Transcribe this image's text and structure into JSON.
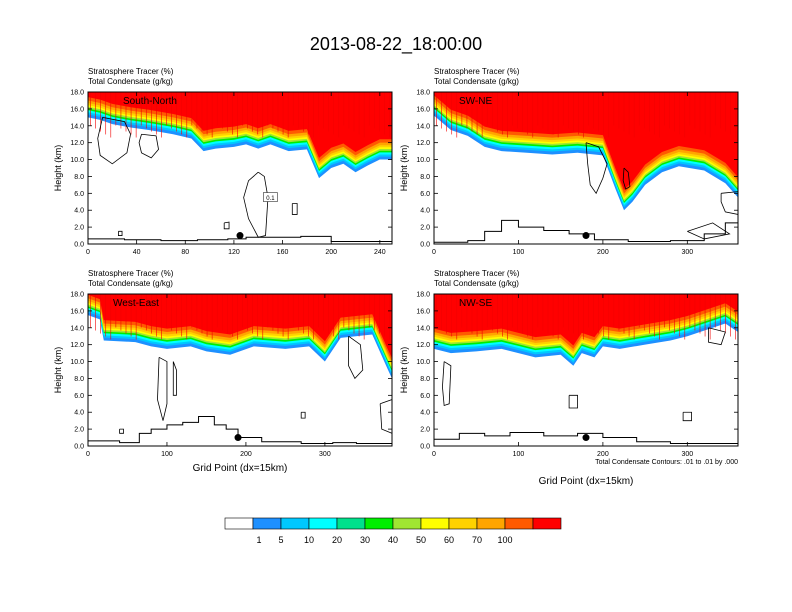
{
  "main_title": "2013-08-22_18:00:00",
  "colors": {
    "bands": [
      "#ffffff",
      "#1e90ff",
      "#00c8ff",
      "#00ffff",
      "#00e08c",
      "#00ee00",
      "#a0e632",
      "#ffff00",
      "#ffd200",
      "#ffa500",
      "#ff5a00",
      "#ff0000"
    ],
    "contour": "#000000",
    "terrain": "#000000"
  },
  "footnote": "Total Condensate Contours: .01 to .01 by .000",
  "chart_data": [
    {
      "type": "heatmap",
      "panel": "top-left",
      "label": "South-North",
      "title_line1": "Stratosphere Tracer   (%)",
      "title_line2": "Total Condensate   (g/kg)",
      "ylabel": "Height (km)",
      "xlabel": "",
      "xlim": [
        0,
        250
      ],
      "ylim": [
        0,
        18
      ],
      "xticks": [
        0,
        40,
        80,
        120,
        160,
        200,
        240
      ],
      "yticks": [
        "0.0",
        "2.0",
        "4.0",
        "6.0",
        "8.0",
        "10.0",
        "12.0",
        "14.0",
        "16.0",
        "18.0"
      ],
      "tropopause": [
        [
          0,
          15.0
        ],
        [
          10,
          14.7
        ],
        [
          20,
          14.2
        ],
        [
          35,
          13.8
        ],
        [
          50,
          13.5
        ],
        [
          70,
          13.0
        ],
        [
          85,
          12.5
        ],
        [
          95,
          11.0
        ],
        [
          105,
          11.3
        ],
        [
          120,
          11.5
        ],
        [
          130,
          11.8
        ],
        [
          140,
          11.3
        ],
        [
          150,
          11.8
        ],
        [
          165,
          11.0
        ],
        [
          180,
          11.2
        ],
        [
          190,
          7.8
        ],
        [
          200,
          9.0
        ],
        [
          210,
          9.5
        ],
        [
          220,
          8.5
        ],
        [
          230,
          9.3
        ],
        [
          240,
          10.0
        ],
        [
          250,
          10.0
        ]
      ],
      "terrain": [
        [
          0,
          0.6
        ],
        [
          30,
          0.5
        ],
        [
          60,
          0.4
        ],
        [
          90,
          0.5
        ],
        [
          115,
          0.6
        ],
        [
          130,
          0.8
        ],
        [
          150,
          0.8
        ],
        [
          175,
          0.9
        ],
        [
          200,
          0.3
        ],
        [
          250,
          0.2
        ]
      ],
      "point_marker": [
        125,
        1.0
      ],
      "contour_label": "0.1",
      "contours": [
        [
          [
            12,
            15.0
          ],
          [
            30,
            14.5
          ],
          [
            35,
            13.0
          ],
          [
            32,
            10.8
          ],
          [
            20,
            9.5
          ],
          [
            10,
            10.5
          ],
          [
            8,
            12.5
          ],
          [
            12,
            15.0
          ]
        ],
        [
          [
            44,
            13.0
          ],
          [
            56,
            12.8
          ],
          [
            58,
            11.2
          ],
          [
            52,
            10.2
          ],
          [
            44,
            10.8
          ],
          [
            42,
            12.0
          ],
          [
            44,
            13.0
          ]
        ],
        [
          [
            140,
            8.5
          ],
          [
            145,
            8.0
          ],
          [
            148,
            5.5
          ],
          [
            146,
            1.0
          ],
          [
            140,
            0.8
          ],
          [
            132,
            3.0
          ],
          [
            128,
            5.5
          ],
          [
            132,
            7.5
          ],
          [
            140,
            8.5
          ]
        ],
        [
          [
            112,
            2.5
          ],
          [
            116,
            2.6
          ],
          [
            116,
            1.8
          ],
          [
            112,
            1.8
          ],
          [
            112,
            2.5
          ]
        ],
        [
          [
            168,
            4.8
          ],
          [
            172,
            4.8
          ],
          [
            172,
            3.5
          ],
          [
            168,
            3.5
          ],
          [
            168,
            4.8
          ]
        ],
        [
          [
            25,
            1.5
          ],
          [
            28,
            1.5
          ],
          [
            28,
            1.0
          ],
          [
            25,
            1.0
          ],
          [
            25,
            1.5
          ]
        ]
      ]
    },
    {
      "type": "heatmap",
      "panel": "top-right",
      "label": "SW-NE",
      "title_line1": "Stratosphere Tracer   (%)",
      "title_line2": "Total Condensate   (g/kg)",
      "ylabel": "Height (km)",
      "xlabel": "",
      "xlim": [
        0,
        360
      ],
      "ylim": [
        0,
        18
      ],
      "xticks": [
        0,
        100,
        200,
        300
      ],
      "yticks": [
        "0.0",
        "2.0",
        "4.0",
        "6.0",
        "8.0",
        "10.0",
        "12.0",
        "14.0",
        "16.0",
        "18.0"
      ],
      "tropopause": [
        [
          0,
          15.2
        ],
        [
          20,
          13.5
        ],
        [
          40,
          12.8
        ],
        [
          60,
          11.5
        ],
        [
          80,
          11.0
        ],
        [
          110,
          10.8
        ],
        [
          140,
          10.6
        ],
        [
          170,
          10.8
        ],
        [
          200,
          10.5
        ],
        [
          215,
          6.5
        ],
        [
          225,
          4.0
        ],
        [
          235,
          5.0
        ],
        [
          250,
          7.0
        ],
        [
          270,
          8.5
        ],
        [
          290,
          9.2
        ],
        [
          320,
          8.7
        ],
        [
          345,
          7.2
        ],
        [
          360,
          5.5
        ]
      ],
      "terrain": [
        [
          0,
          0.2
        ],
        [
          40,
          0.4
        ],
        [
          60,
          1.5
        ],
        [
          80,
          2.8
        ],
        [
          100,
          2.0
        ],
        [
          130,
          1.6
        ],
        [
          160,
          1.2
        ],
        [
          190,
          0.5
        ],
        [
          230,
          0.3
        ],
        [
          280,
          0.4
        ],
        [
          320,
          1.2
        ],
        [
          345,
          2.5
        ],
        [
          360,
          3.8
        ]
      ],
      "point_marker": [
        180,
        1.0
      ],
      "contour_label": "",
      "contours": [
        [
          [
            180,
            12.0
          ],
          [
            195,
            11.5
          ],
          [
            205,
            9.5
          ],
          [
            200,
            7.8
          ],
          [
            192,
            6.0
          ],
          [
            185,
            7.0
          ],
          [
            182,
            9.5
          ],
          [
            180,
            12.0
          ]
        ],
        [
          [
            225,
            9.0
          ],
          [
            230,
            8.5
          ],
          [
            232,
            6.8
          ],
          [
            227,
            6.5
          ],
          [
            224,
            7.5
          ],
          [
            225,
            9.0
          ]
        ],
        [
          [
            340,
            6.0
          ],
          [
            360,
            6.2
          ],
          [
            360,
            3.5
          ],
          [
            345,
            3.8
          ],
          [
            340,
            5.0
          ],
          [
            340,
            6.0
          ]
        ],
        [
          [
            300,
            1.5
          ],
          [
            330,
            2.5
          ],
          [
            350,
            1.2
          ],
          [
            320,
            0.6
          ],
          [
            300,
            1.5
          ]
        ]
      ]
    },
    {
      "type": "heatmap",
      "panel": "bottom-left",
      "label": "West-East",
      "title_line1": "Stratosphere Tracer   (%)",
      "title_line2": "Total Condensate   (g/kg)",
      "ylabel": "Height (km)",
      "xlabel": "Grid Point (dx=15km)",
      "xlim": [
        0,
        385
      ],
      "ylim": [
        0,
        18
      ],
      "xticks": [
        0,
        100,
        200,
        300
      ],
      "yticks": [
        "0.0",
        "2.0",
        "4.0",
        "6.0",
        "8.0",
        "10.0",
        "12.0",
        "14.0",
        "16.0",
        "18.0"
      ],
      "tropopause": [
        [
          0,
          15.5
        ],
        [
          15,
          15.0
        ],
        [
          20,
          12.5
        ],
        [
          60,
          12.3
        ],
        [
          80,
          11.8
        ],
        [
          100,
          11.5
        ],
        [
          130,
          11.8
        ],
        [
          150,
          11.2
        ],
        [
          180,
          10.8
        ],
        [
          210,
          11.8
        ],
        [
          250,
          11.5
        ],
        [
          280,
          11.8
        ],
        [
          300,
          10.0
        ],
        [
          320,
          12.8
        ],
        [
          360,
          13.2
        ],
        [
          380,
          9.0
        ],
        [
          385,
          8.0
        ]
      ],
      "terrain": [
        [
          0,
          0.6
        ],
        [
          40,
          0.4
        ],
        [
          65,
          1.5
        ],
        [
          80,
          2.0
        ],
        [
          100,
          2.5
        ],
        [
          120,
          2.8
        ],
        [
          140,
          3.5
        ],
        [
          160,
          2.5
        ],
        [
          175,
          2.0
        ],
        [
          190,
          1.0
        ],
        [
          220,
          0.5
        ],
        [
          270,
          0.3
        ],
        [
          310,
          0.4
        ],
        [
          340,
          0.3
        ],
        [
          385,
          0.2
        ]
      ],
      "point_marker": [
        190,
        1.0
      ],
      "contour_label": "",
      "contours": [
        [
          [
            90,
            10.5
          ],
          [
            100,
            10.0
          ],
          [
            100,
            5.0
          ],
          [
            95,
            3.0
          ],
          [
            88,
            5.5
          ],
          [
            90,
            10.5
          ]
        ],
        [
          [
            108,
            10.0
          ],
          [
            112,
            9.0
          ],
          [
            112,
            6.0
          ],
          [
            108,
            6.0
          ],
          [
            108,
            10.0
          ]
        ],
        [
          [
            330,
            13.0
          ],
          [
            345,
            12.0
          ],
          [
            348,
            9.0
          ],
          [
            338,
            8.0
          ],
          [
            330,
            9.5
          ],
          [
            330,
            13.0
          ]
        ],
        [
          [
            370,
            5.0
          ],
          [
            385,
            5.5
          ],
          [
            385,
            1.5
          ],
          [
            372,
            2.0
          ],
          [
            370,
            5.0
          ]
        ],
        [
          [
            270,
            4.0
          ],
          [
            275,
            4.0
          ],
          [
            275,
            3.3
          ],
          [
            270,
            3.3
          ],
          [
            270,
            4.0
          ]
        ],
        [
          [
            40,
            2.0
          ],
          [
            45,
            2.0
          ],
          [
            45,
            1.5
          ],
          [
            40,
            1.5
          ],
          [
            40,
            2.0
          ]
        ]
      ]
    },
    {
      "type": "heatmap",
      "panel": "bottom-right",
      "label": "NW-SE",
      "title_line1": "Stratosphere Tracer   (%)",
      "title_line2": "Total Condensate   (g/kg)",
      "ylabel": "Height (km)",
      "xlabel": "Grid Point (dx=15km)",
      "xlim": [
        0,
        360
      ],
      "ylim": [
        0,
        18
      ],
      "xticks": [
        0,
        100,
        200,
        300
      ],
      "yticks": [
        "0.0",
        "2.0",
        "4.0",
        "6.0",
        "8.0",
        "10.0",
        "12.0",
        "14.0",
        "16.0",
        "18.0"
      ],
      "tropopause": [
        [
          0,
          11.5
        ],
        [
          20,
          11.0
        ],
        [
          50,
          11.2
        ],
        [
          80,
          11.5
        ],
        [
          100,
          11.0
        ],
        [
          120,
          10.5
        ],
        [
          150,
          10.8
        ],
        [
          165,
          9.5
        ],
        [
          175,
          11.0
        ],
        [
          190,
          10.5
        ],
        [
          200,
          11.8
        ],
        [
          220,
          11.5
        ],
        [
          250,
          12.0
        ],
        [
          280,
          12.5
        ],
        [
          300,
          13.0
        ],
        [
          330,
          14.0
        ],
        [
          345,
          14.5
        ],
        [
          360,
          13.5
        ]
      ],
      "terrain": [
        [
          0,
          0.8
        ],
        [
          30,
          1.5
        ],
        [
          60,
          1.2
        ],
        [
          90,
          1.6
        ],
        [
          130,
          1.2
        ],
        [
          170,
          1.5
        ],
        [
          200,
          1.0
        ],
        [
          240,
          0.5
        ],
        [
          280,
          0.3
        ],
        [
          360,
          0.2
        ]
      ],
      "point_marker": [
        180,
        1.0
      ],
      "contour_label": "",
      "contours": [
        [
          [
            12,
            10.0
          ],
          [
            20,
            9.5
          ],
          [
            18,
            5.0
          ],
          [
            12,
            4.8
          ],
          [
            10,
            7.0
          ],
          [
            12,
            10.0
          ]
        ],
        [
          [
            325,
            14.0
          ],
          [
            345,
            13.5
          ],
          [
            340,
            12.0
          ],
          [
            325,
            12.3
          ],
          [
            325,
            14.0
          ]
        ],
        [
          [
            295,
            4.0
          ],
          [
            305,
            4.0
          ],
          [
            305,
            3.0
          ],
          [
            295,
            3.0
          ],
          [
            295,
            4.0
          ]
        ],
        [
          [
            160,
            6.0
          ],
          [
            170,
            6.0
          ],
          [
            170,
            4.5
          ],
          [
            160,
            4.5
          ],
          [
            160,
            6.0
          ]
        ]
      ]
    }
  ],
  "colorbar": {
    "labels": [
      "1",
      "5",
      "10",
      "20",
      "30",
      "40",
      "50",
      "60",
      "70",
      "100"
    ]
  }
}
